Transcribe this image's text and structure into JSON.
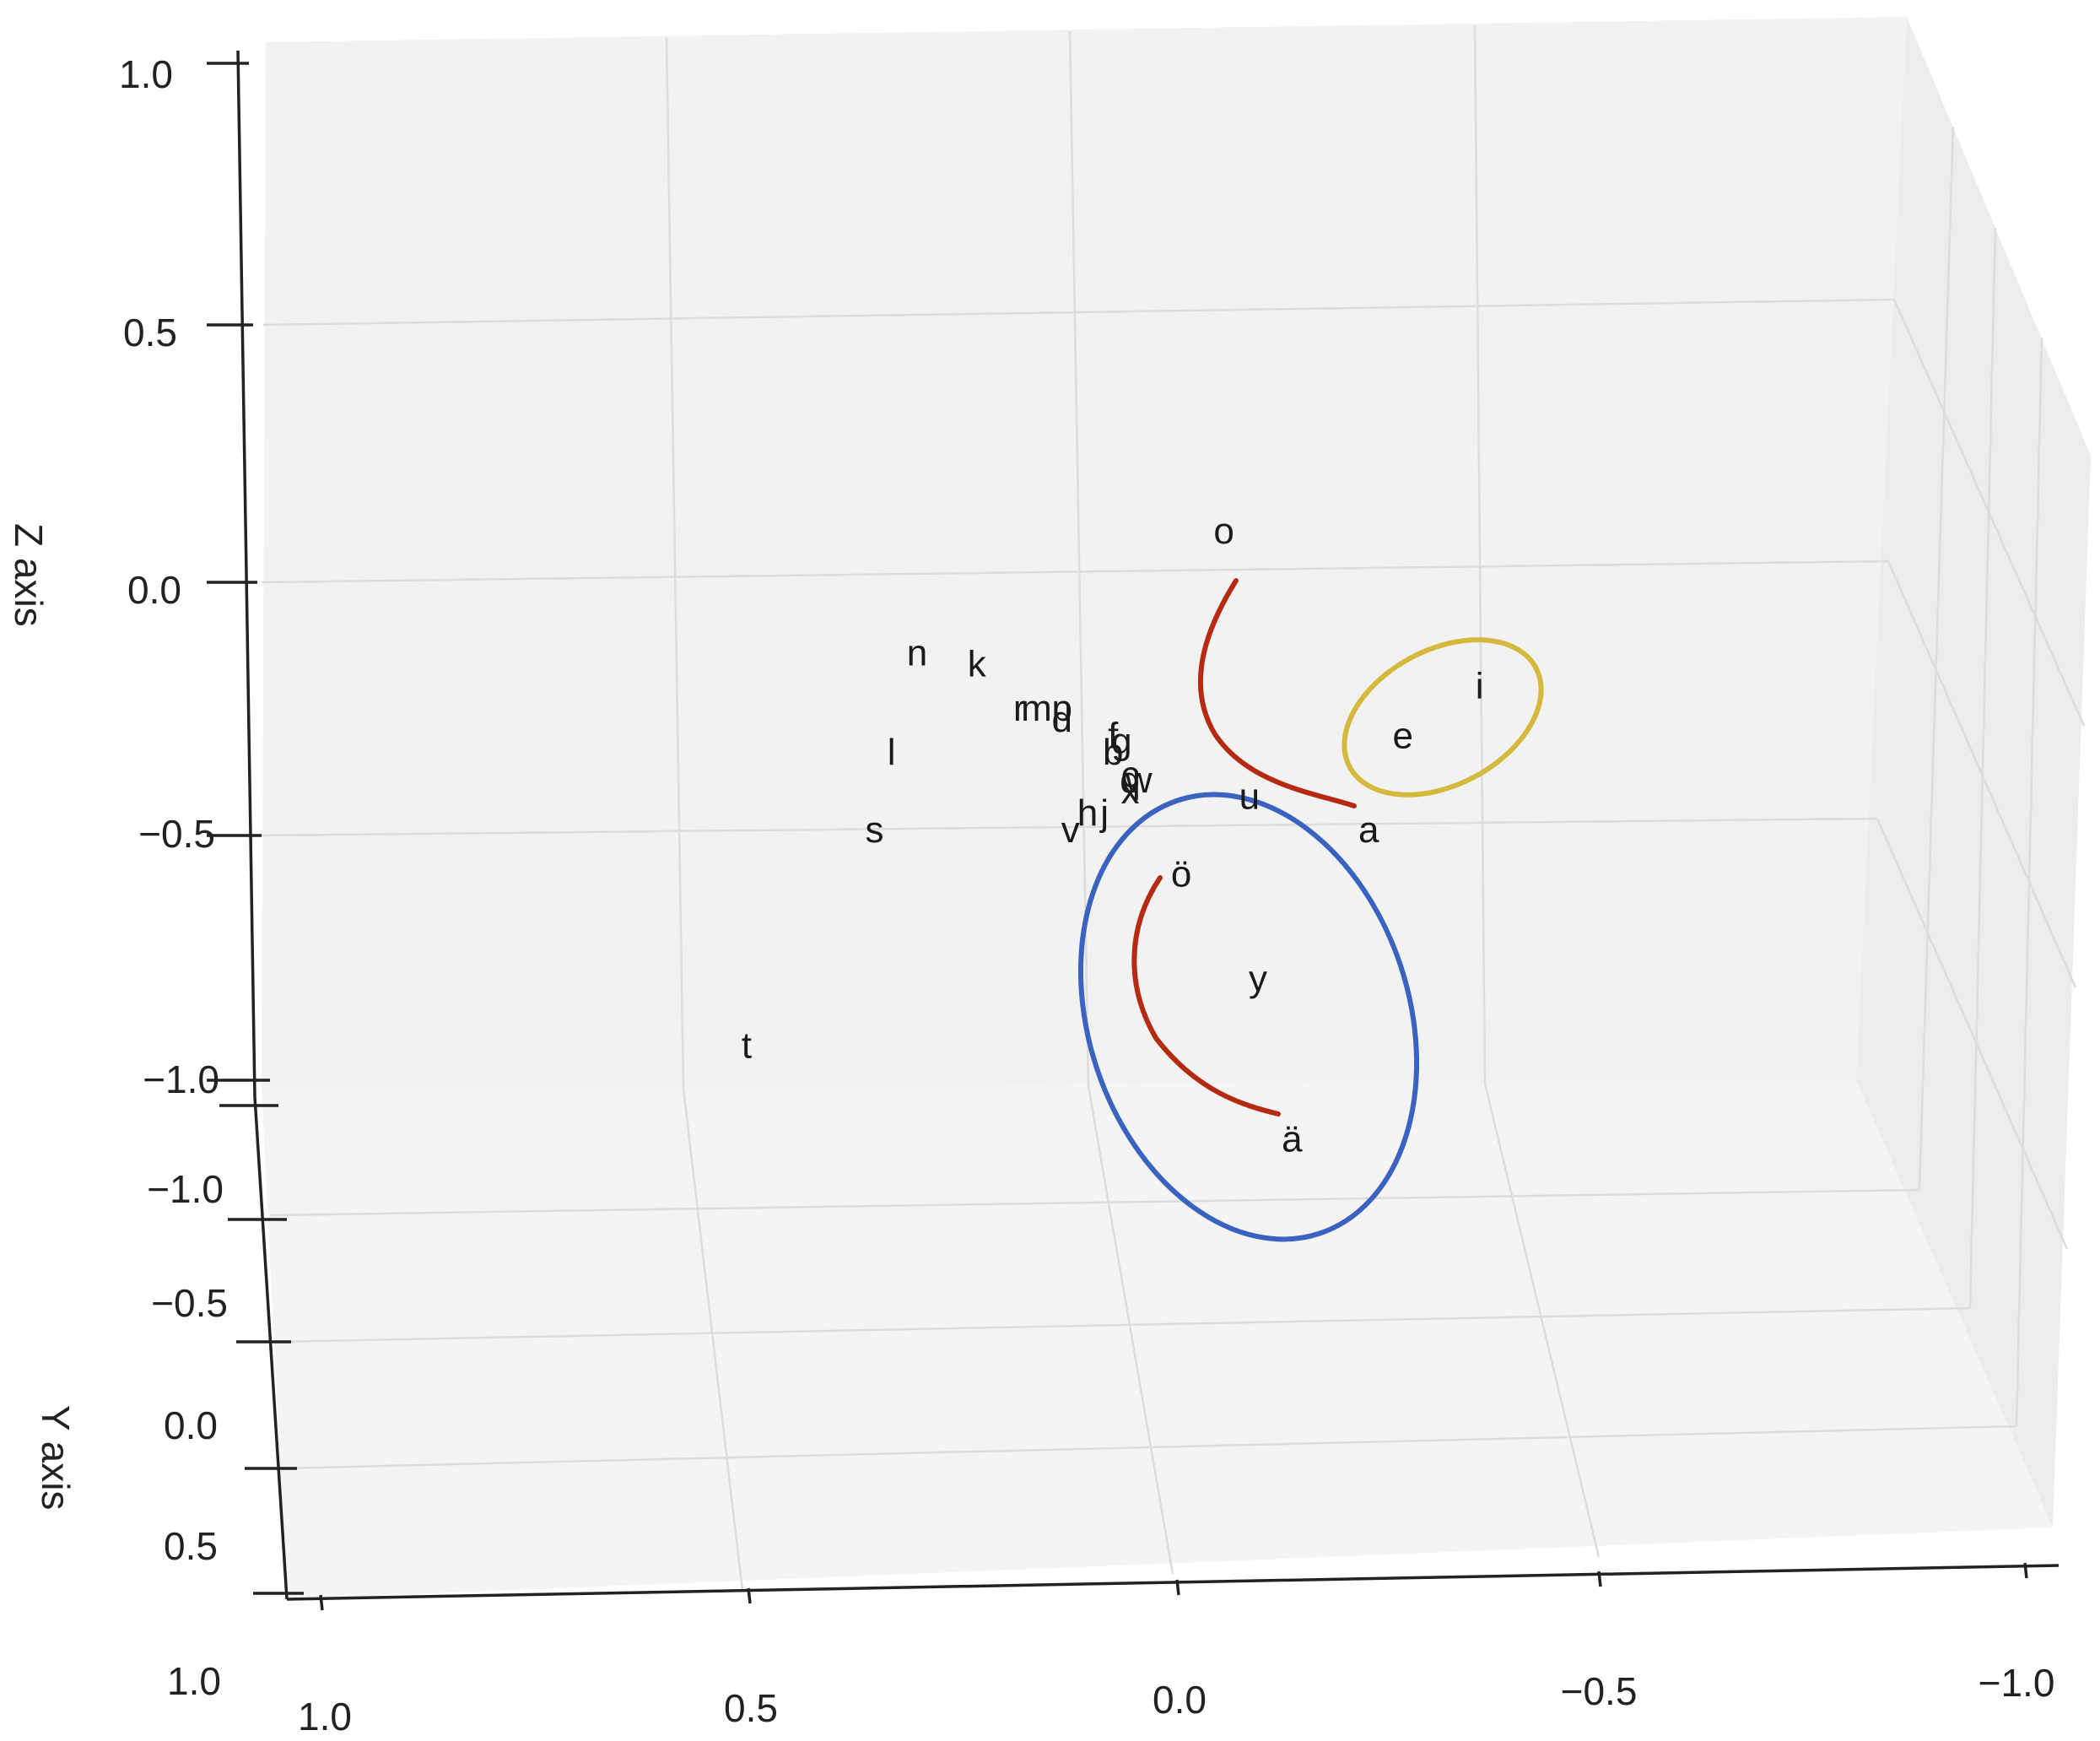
{
  "chart_data": {
    "type": "scatter",
    "projection": "3d",
    "title": "",
    "xlabel": "",
    "ylabel": "Y axis",
    "zlabel": "Z axis",
    "xlim": [
      -1.0,
      1.0
    ],
    "ylim": [
      -1.0,
      0.5
    ],
    "zlim": [
      -1.0,
      1.0
    ],
    "x_ticks": [
      "1.0",
      "0.5",
      "0.0",
      "−0.5",
      "−1.0"
    ],
    "y_ticks": [
      "−1.0",
      "−0.5",
      "0.0",
      "0.5",
      "1.0"
    ],
    "z_ticks": [
      "1.0",
      "0.5",
      "0.0",
      "−0.5",
      "−1.0"
    ],
    "grid": true,
    "points": [
      {
        "label": "n",
        "x": 0.3,
        "z": -0.15
      },
      {
        "label": "k",
        "x": 0.23,
        "z": -0.17
      },
      {
        "label": "r",
        "x": 0.18,
        "z": -0.25
      },
      {
        "label": "m",
        "x": 0.16,
        "z": -0.25
      },
      {
        "label": "p",
        "x": 0.13,
        "z": -0.25
      },
      {
        "label": "d",
        "x": 0.13,
        "z": -0.27
      },
      {
        "label": "l",
        "x": 0.33,
        "z": -0.33
      },
      {
        "label": "s",
        "x": 0.35,
        "z": -0.47
      },
      {
        "label": "f",
        "x": 0.07,
        "z": -0.3
      },
      {
        "label": "b",
        "x": 0.07,
        "z": -0.33
      },
      {
        "label": "g",
        "x": 0.06,
        "z": -0.31
      },
      {
        "label": "c",
        "x": 0.05,
        "z": -0.37
      },
      {
        "label": "q",
        "x": 0.05,
        "z": -0.38
      },
      {
        "label": "w",
        "x": 0.04,
        "z": -0.38
      },
      {
        "label": "x",
        "x": 0.05,
        "z": -0.4
      },
      {
        "label": "h",
        "x": 0.1,
        "z": -0.44
      },
      {
        "label": "j",
        "x": 0.08,
        "z": -0.44
      },
      {
        "label": "v",
        "x": 0.12,
        "z": -0.47
      },
      {
        "label": "o",
        "x": -0.06,
        "z": 0.07
      },
      {
        "label": "u",
        "x": -0.09,
        "z": -0.41
      },
      {
        "label": "a",
        "x": -0.23,
        "z": -0.47
      },
      {
        "label": "e",
        "x": -0.27,
        "z": -0.3
      },
      {
        "label": "i",
        "x": -0.36,
        "z": -0.21
      },
      {
        "label": "ö",
        "x": -0.01,
        "z": -0.55
      },
      {
        "label": "y",
        "x": -0.1,
        "z": -0.74
      },
      {
        "label": "ä",
        "x": -0.14,
        "z": -1.03
      },
      {
        "label": "t",
        "x": 0.5,
        "z": -0.86
      }
    ],
    "annotations": [
      {
        "type": "curve",
        "color": "#b52a10",
        "from": "o",
        "to": "a"
      },
      {
        "type": "curve",
        "color": "#b52a10",
        "from": "ö",
        "to": "ä"
      },
      {
        "type": "ellipse",
        "color": "#d4b93c",
        "encloses": [
          "e",
          "i"
        ]
      },
      {
        "type": "ellipse",
        "color": "#3a62c0",
        "encloses": [
          "ö",
          "y",
          "ä"
        ]
      }
    ]
  },
  "colors": {
    "pane_back": "#f2f2f2",
    "pane_side": "#ececec",
    "pane_floor": "#f4f4f4",
    "gridline": "#dcdcdc",
    "curve": "#b52a10",
    "ellipse_yellow": "#d4b93c",
    "ellipse_blue": "#3a62c0"
  }
}
